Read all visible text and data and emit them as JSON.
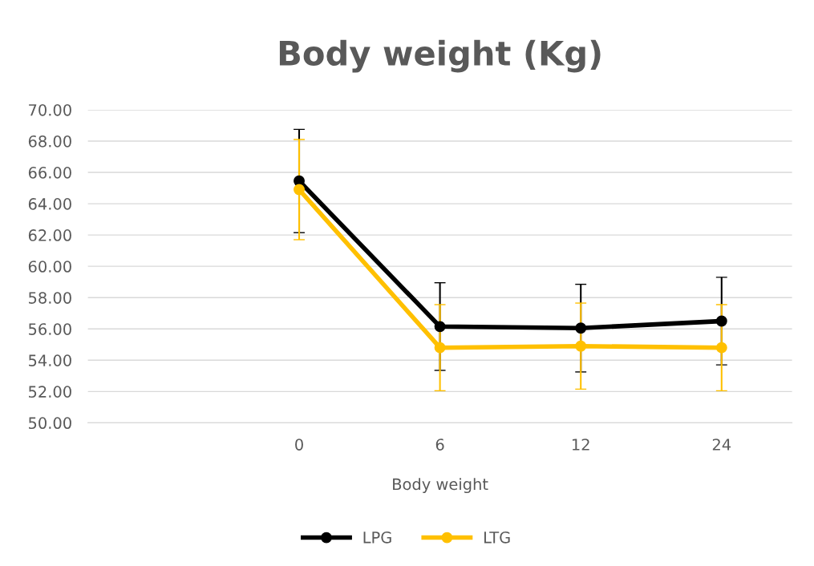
{
  "chart_data": {
    "type": "line",
    "title": "Body weight (Kg)",
    "xlabel": "Body weight",
    "categories": [
      null,
      "0",
      "6",
      "12",
      "24"
    ],
    "series": [
      {
        "name": "LPG",
        "color": "#000000",
        "values": [
          null,
          65.45,
          56.15,
          56.05,
          56.5
        ],
        "errors": [
          null,
          3.3,
          2.8,
          2.8,
          2.8
        ]
      },
      {
        "name": "LTG",
        "color": "#ffc000",
        "values": [
          null,
          64.9,
          54.8,
          54.9,
          54.8
        ],
        "errors": [
          null,
          3.2,
          2.75,
          2.75,
          2.75
        ]
      }
    ],
    "ylim": [
      50,
      70
    ],
    "yticks": [
      {
        "value": 50,
        "label": "50.00"
      },
      {
        "value": 52,
        "label": "52.00"
      },
      {
        "value": 54,
        "label": "54.00"
      },
      {
        "value": 56,
        "label": "56.00"
      },
      {
        "value": 58,
        "label": "58.00"
      },
      {
        "value": 60,
        "label": "60.00"
      },
      {
        "value": 62,
        "label": "62.00"
      },
      {
        "value": 64,
        "label": "64.00"
      },
      {
        "value": 66,
        "label": "66.00"
      },
      {
        "value": 68,
        "label": "68.00"
      },
      {
        "value": 70,
        "label": "70.00"
      }
    ],
    "grid": "y",
    "legend": "bottom",
    "marker": "circle",
    "line_style": "solid"
  }
}
